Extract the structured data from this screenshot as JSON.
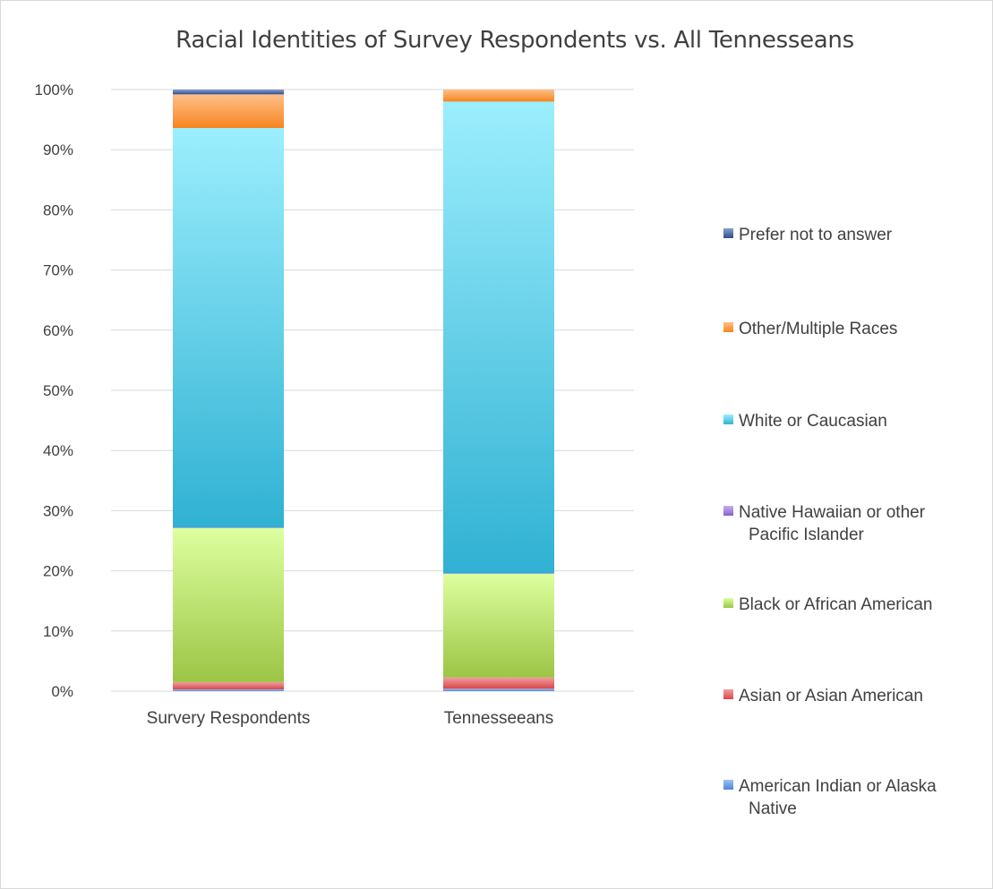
{
  "chart_data": {
    "type": "bar",
    "stacked": true,
    "title": "Racial Identities of Survey Respondents vs. All Tennesseans",
    "categories": [
      "Survery Respondents",
      "Tennesseeans"
    ],
    "ylim": [
      0,
      100
    ],
    "yticks": [
      "0%",
      "10%",
      "20%",
      "30%",
      "40%",
      "50%",
      "60%",
      "70%",
      "80%",
      "90%",
      "100%"
    ],
    "grid": true,
    "legend_position": "right",
    "series": [
      {
        "name": "American Indian or Alaska Native",
        "values": [
          0.3,
          0.4
        ],
        "color_top": "#9dc3f0",
        "color_bottom": "#4a86d8"
      },
      {
        "name": "Asian or Asian American",
        "values": [
          1.2,
          1.9
        ],
        "color_top": "#f19ea0",
        "color_bottom": "#d9454a"
      },
      {
        "name": "Black or African American",
        "values": [
          25.6,
          17.2
        ],
        "color_top": "#ddff9f",
        "color_bottom": "#9cc545"
      },
      {
        "name": "Native Hawaiian or other Pacific Islander",
        "values": [
          0.1,
          0.1
        ],
        "color_top": "#c8aff0",
        "color_bottom": "#8761c9"
      },
      {
        "name": "White or Caucasian",
        "values": [
          66.4,
          78.4
        ],
        "color_top": "#9ceefd",
        "color_bottom": "#30b1d3"
      },
      {
        "name": "Other/Multiple Races",
        "values": [
          5.6,
          2.0
        ],
        "color_top": "#ffbf8a",
        "color_bottom": "#f6861f"
      },
      {
        "name": "Prefer not to answer",
        "values": [
          0.8,
          0.0
        ],
        "color_top": "#8aa2cc",
        "color_bottom": "#2e4c8c"
      }
    ]
  }
}
